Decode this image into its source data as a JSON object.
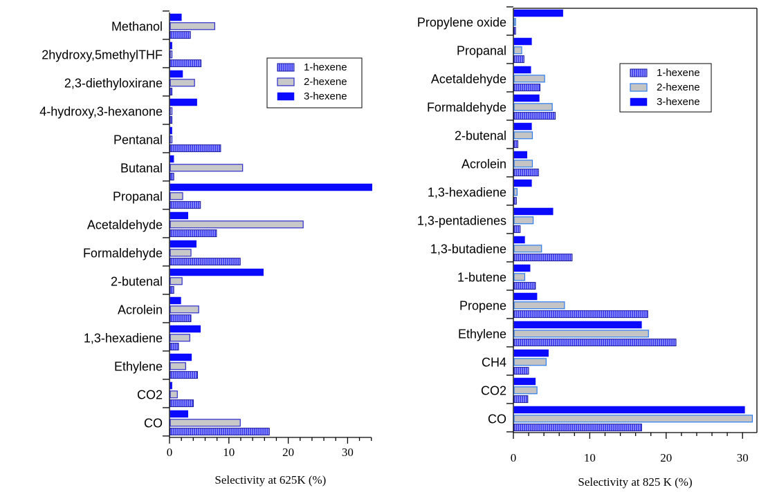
{
  "chart_data": [
    {
      "type": "bar",
      "orientation": "horizontal",
      "categories": [
        "Methanol",
        "2hydroxy,5methylTHF",
        "2,3-diethyloxirane",
        "4-hydroxy,3-hexanone",
        "Pentanal",
        "Butanal",
        "Propanal",
        "Acetaldehyde",
        "Formaldehyde",
        "2-butenal",
        "Acrolein",
        "1,3-hexadiene",
        "Ethylene",
        "CO2",
        "CO"
      ],
      "series": [
        {
          "name": "1-hexene",
          "values": [
            3.4,
            5.2,
            0.3,
            0.3,
            8.5,
            0.6,
            5.1,
            7.8,
            11.8,
            0.6,
            3.5,
            1.4,
            4.6,
            3.9,
            16.7
          ]
        },
        {
          "name": "2-hexene",
          "values": [
            7.5,
            0.3,
            4.1,
            0.3,
            0.3,
            12.2,
            2.1,
            22.4,
            3.5,
            2.0,
            4.8,
            3.3,
            2.6,
            1.2,
            11.8
          ]
        },
        {
          "name": "3-hexene",
          "values": [
            1.9,
            0.3,
            2.1,
            4.5,
            0.3,
            0.6,
            34.0,
            3.0,
            4.4,
            15.7,
            1.8,
            5.1,
            3.6,
            0.3,
            3.0
          ]
        }
      ],
      "xlabel": "Selectivity at 625K (%)",
      "xlim": [
        0,
        34
      ],
      "xticks": [
        0,
        10,
        20,
        30
      ],
      "legend_position": "top-right",
      "grid": false
    },
    {
      "type": "bar",
      "orientation": "horizontal",
      "categories": [
        "Propylene oxide",
        "Propanal",
        "Acetaldehyde",
        "Formaldehyde",
        "2-butenal",
        "Acrolein",
        "1,3-hexadiene",
        "1,3-pentadienes",
        "1,3-butadiene",
        "1-butene",
        "Propene",
        "Ethylene",
        "CH4",
        "CO2",
        "CO"
      ],
      "series": [
        {
          "name": "1-hexene",
          "values": [
            0.2,
            1.3,
            3.4,
            5.4,
            0.5,
            3.2,
            0.3,
            0.8,
            7.6,
            2.8,
            17.5,
            21.2,
            1.9,
            1.8,
            16.7
          ]
        },
        {
          "name": "2-hexene",
          "values": [
            0.2,
            1.0,
            4.0,
            5.0,
            2.4,
            2.4,
            0.4,
            2.5,
            3.6,
            1.4,
            6.6,
            17.6,
            4.2,
            3.0,
            31.2
          ]
        },
        {
          "name": "3-hexene",
          "values": [
            6.4,
            2.3,
            2.2,
            3.3,
            2.3,
            1.7,
            2.3,
            5.1,
            1.4,
            2.1,
            3.0,
            16.7,
            4.5,
            2.8,
            30.2
          ]
        }
      ],
      "xlabel": "Selectivity at 825 K (%)",
      "xlim": [
        0,
        31.5
      ],
      "xticks": [
        0,
        10,
        20,
        30
      ],
      "legend_position": "top-right",
      "grid": false
    }
  ],
  "colors": {
    "hex1_fill": "#3d3df0",
    "hex1_stripe": "#9a9aff",
    "hex1_stroke": "#1a1a9c",
    "hex2_fill_left": "#c8c8c8",
    "hex2_stroke_left": "#2a2acc",
    "hex2_fill_right": "#c4c4c4",
    "hex2_stroke_right": "#2a7cf0",
    "hex3_fill": "#0a0aff"
  }
}
